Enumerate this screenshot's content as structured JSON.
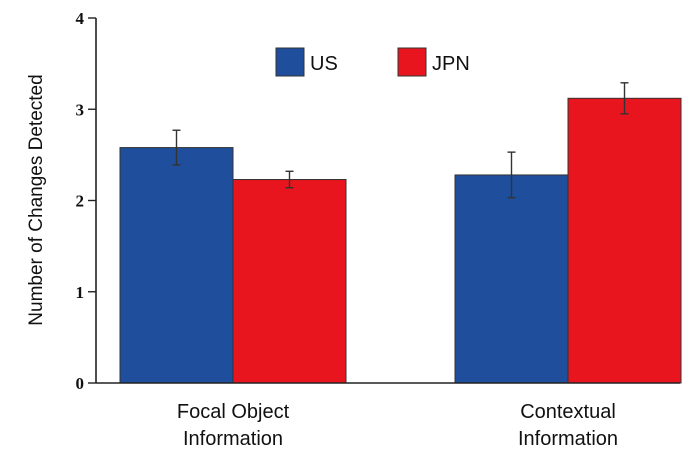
{
  "chart_data": {
    "type": "bar",
    "categories": [
      "Focal Object Information",
      "Contextual Information"
    ],
    "category_lines": [
      [
        "Focal Object",
        "Information"
      ],
      [
        "Contextual",
        "Information"
      ]
    ],
    "series": [
      {
        "name": "US",
        "color": "#1f4e9c",
        "values": [
          2.58,
          2.28
        ],
        "errors": [
          0.19,
          0.25
        ]
      },
      {
        "name": "JPN",
        "color": "#e8141e",
        "values": [
          2.23,
          3.12
        ],
        "errors": [
          0.09,
          0.17
        ]
      }
    ],
    "ylabel": "Number of Changes Detected",
    "xlabel": "",
    "title": "",
    "ylim": [
      0,
      4
    ],
    "yticks": [
      "0",
      "1",
      "2",
      "3",
      "4"
    ],
    "legend_position": "top-center",
    "grid": false
  }
}
